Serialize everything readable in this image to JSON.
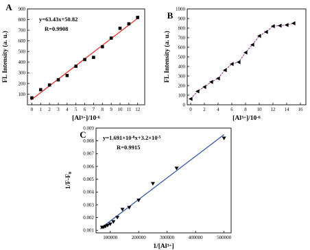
{
  "chart_data": [
    {
      "type": "scatter",
      "panel_label": "A",
      "xlabel": "[Al3+]/10-6",
      "ylabel": "FL Intensity (a. u.)",
      "xlim": [
        -0.5,
        12.8
      ],
      "ylim": [
        0,
        900
      ],
      "xticks": [
        0,
        1,
        2,
        3,
        4,
        5,
        6,
        7,
        8,
        9,
        10,
        11,
        12
      ],
      "yticks": [
        100,
        200,
        300,
        400,
        500,
        600,
        700,
        800,
        900
      ],
      "annotation": {
        "equation": "y=63.43x+50.82",
        "r": "R=0.9908"
      },
      "colors": {
        "points": "#000000",
        "fit_line": "#e8302a"
      },
      "fit": {
        "slope": 63.43,
        "intercept": 50.82,
        "x_range": [
          -0.1,
          12.1
        ]
      },
      "series": [
        {
          "marker": "square",
          "x": [
            0,
            1,
            2,
            3,
            4,
            5,
            6,
            7,
            8,
            9,
            10,
            11,
            12
          ],
          "y": [
            65,
            142,
            186,
            235,
            275,
            362,
            425,
            445,
            545,
            626,
            718,
            760,
            820
          ]
        }
      ]
    },
    {
      "type": "line",
      "panel_label": "B",
      "xlabel": "[Al3+]/10-6",
      "ylabel": "FL Intensity (a. u.)",
      "xlim": [
        -0.5,
        16.8
      ],
      "ylim": [
        0,
        1000
      ],
      "xticks": [
        0,
        2,
        4,
        6,
        8,
        10,
        12,
        14,
        16
      ],
      "yticks": [
        0,
        100,
        200,
        300,
        400,
        500,
        600,
        700,
        800,
        900,
        1000
      ],
      "colors": {
        "points": "#000000",
        "line": "#a0409c"
      },
      "series": [
        {
          "marker": "triangle-left",
          "x": [
            0,
            1,
            2,
            3,
            4,
            5,
            6,
            7,
            8,
            9,
            10,
            11,
            12,
            13,
            14,
            15
          ],
          "y": [
            62,
            140,
            186,
            238,
            275,
            362,
            425,
            445,
            545,
            626,
            718,
            760,
            820,
            825,
            832,
            850
          ]
        }
      ]
    },
    {
      "type": "scatter",
      "panel_label": "C",
      "xlabel": "1/[Al3+]",
      "ylabel": "1/F-F0",
      "xlim": [
        50000,
        525000
      ],
      "ylim": [
        0.0008,
        0.009
      ],
      "xticks": [
        100000,
        200000,
        300000,
        400000,
        500000
      ],
      "yticks": [
        0.001,
        0.002,
        0.003,
        0.004,
        0.005,
        0.006,
        0.007,
        0.008,
        0.009
      ],
      "annotation": {
        "equation": "y=1.691×10-8x+3.2×10-5",
        "r": "R=0.9915"
      },
      "colors": {
        "points": "#000000",
        "fit_line": "#3a5ba8"
      },
      "fit": {
        "slope": 1.691e-08,
        "intercept": 3.2e-05,
        "x_range": [
          65000,
          500000
        ]
      },
      "series": [
        {
          "marker": "triangle-down",
          "x": [
            71400,
            76900,
            83300,
            90900,
            100000,
            111100,
            125000,
            142900,
            166700,
            200000,
            250000,
            333300,
            500000
          ],
          "y": [
            0.00123,
            0.00124,
            0.0013,
            0.00138,
            0.00148,
            0.00166,
            0.002,
            0.00263,
            0.00278,
            0.00335,
            0.00465,
            0.00585,
            0.0082
          ]
        }
      ]
    }
  ]
}
